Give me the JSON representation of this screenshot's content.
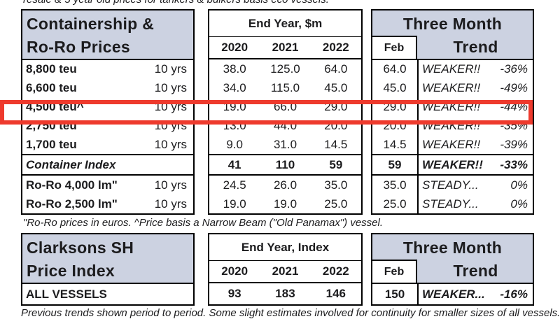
{
  "captions": {
    "top_clipped": "resale & 5 year old prices for tankers & bulkers basis eco vessels.",
    "footnote": "\"Ro-Ro prices in euros. ^Price basis a Narrow Beam (\"Old Panamax\") vessel.",
    "bottom_clipped": "Previous trends shown period to period. Some slight estimates involved for continuity for smaller sizes of all vessels."
  },
  "colors": {
    "header_bg": "#ccd2e1",
    "highlight_red": "#ee3a2d",
    "border": "#000000"
  },
  "container_table": {
    "title_line1": "Containership &",
    "title_line2": "Ro-Ro Prices",
    "value_header": "End Year, $m",
    "years": [
      "2020",
      "2021",
      "2022"
    ],
    "period_header": "Three Month",
    "month_label": "Feb",
    "trend_label": "Trend",
    "rows": [
      {
        "name": "8,800 teu",
        "age": "10 yrs",
        "y2020": "38.0",
        "y2021": "125.0",
        "y2022": "64.0",
        "feb": "64.0",
        "trend": "WEAKER!!",
        "change": "-36%"
      },
      {
        "name": "6,600 teu",
        "age": "10 yrs",
        "y2020": "34.0",
        "y2021": "115.0",
        "y2022": "45.0",
        "feb": "45.0",
        "trend": "WEAKER!!",
        "change": "-49%"
      },
      {
        "name": "4,500 teu^",
        "age": "10 yrs",
        "y2020": "19.0",
        "y2021": "66.0",
        "y2022": "29.0",
        "feb": "29.0",
        "trend": "WEAKER!!",
        "change": "-44%",
        "highlighted": true
      },
      {
        "name": "2,750 teu",
        "age": "10 yrs",
        "y2020": "13.0",
        "y2021": "44.0",
        "y2022": "20.0",
        "feb": "20.0",
        "trend": "WEAKER!!",
        "change": "-35%"
      },
      {
        "name": "1,700 teu",
        "age": "10 yrs",
        "y2020": "9.0",
        "y2021": "31.0",
        "y2022": "14.5",
        "feb": "14.5",
        "trend": "WEAKER!!",
        "change": "-39%"
      },
      {
        "name": "Container Index",
        "age": "",
        "y2020": "41",
        "y2021": "110",
        "y2022": "59",
        "feb": "59",
        "trend": "WEAKER!!",
        "change": "-33%",
        "emphasis": true,
        "italic_name": true,
        "rule": true
      },
      {
        "name": "Ro-Ro 4,000 lm\"",
        "age": "10 yrs",
        "y2020": "24.5",
        "y2021": "26.0",
        "y2022": "35.0",
        "feb": "35.0",
        "trend": "STEADY...",
        "change": "0%"
      },
      {
        "name": "Ro-Ro 2,500 lm\"",
        "age": "10 yrs",
        "y2020": "19.0",
        "y2021": "19.0",
        "y2022": "25.0",
        "feb": "25.0",
        "trend": "STEADY...",
        "change": "0%"
      }
    ]
  },
  "index_table": {
    "title_line1": "Clarksons SH",
    "title_line2": "Price Index",
    "value_header": "End Year, Index",
    "years": [
      "2020",
      "2021",
      "2022"
    ],
    "period_header": "Three Month",
    "month_label": "Feb",
    "trend_label": "Trend",
    "rows": [
      {
        "name": "ALL VESSELS",
        "age": "",
        "y2020": "93",
        "y2021": "183",
        "y2022": "146",
        "feb": "150",
        "trend": "WEAKER...",
        "change": "-16%",
        "emphasis": true
      }
    ]
  }
}
